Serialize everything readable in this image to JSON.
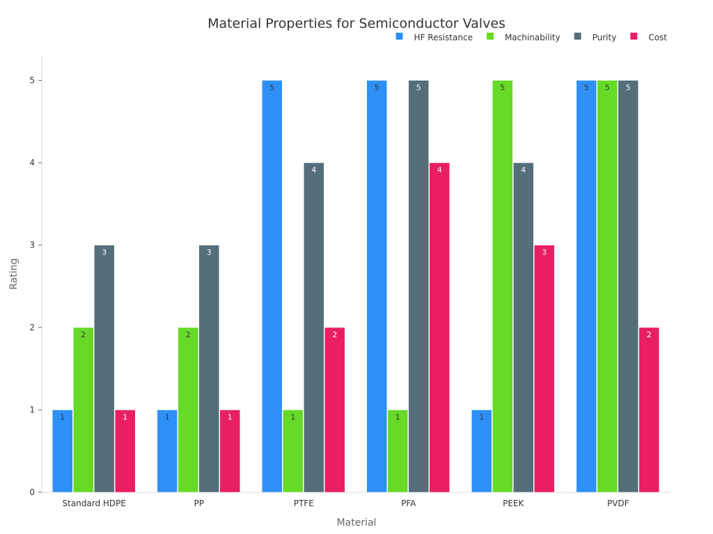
{
  "chart_data": {
    "type": "bar",
    "title": "Material Properties for Semiconductor Valves",
    "xlabel": "Material",
    "ylabel": "Rating",
    "categories": [
      "Standard HDPE",
      "PP",
      "PTFE",
      "PFA",
      "PEEK",
      "PVDF"
    ],
    "series": [
      {
        "name": "HF Resistance",
        "values": [
          1,
          1,
          5,
          5,
          1,
          5
        ],
        "color": "#2E90F7",
        "label_color": "#333333"
      },
      {
        "name": "Machinability",
        "values": [
          2,
          2,
          1,
          1,
          5,
          5
        ],
        "color": "#66DA26",
        "label_color": "#333333"
      },
      {
        "name": "Purity",
        "values": [
          3,
          3,
          4,
          5,
          4,
          5
        ],
        "color": "#546E7A",
        "label_color": "#ffffff"
      },
      {
        "name": "Cost",
        "values": [
          1,
          1,
          2,
          4,
          3,
          2
        ],
        "color": "#E91E63",
        "label_color": "#ffffff"
      }
    ],
    "ylim": [
      0,
      5.3
    ],
    "yticks": [
      0,
      1,
      2,
      3,
      4,
      5
    ],
    "grid": false,
    "legend_position": "top-right"
  }
}
